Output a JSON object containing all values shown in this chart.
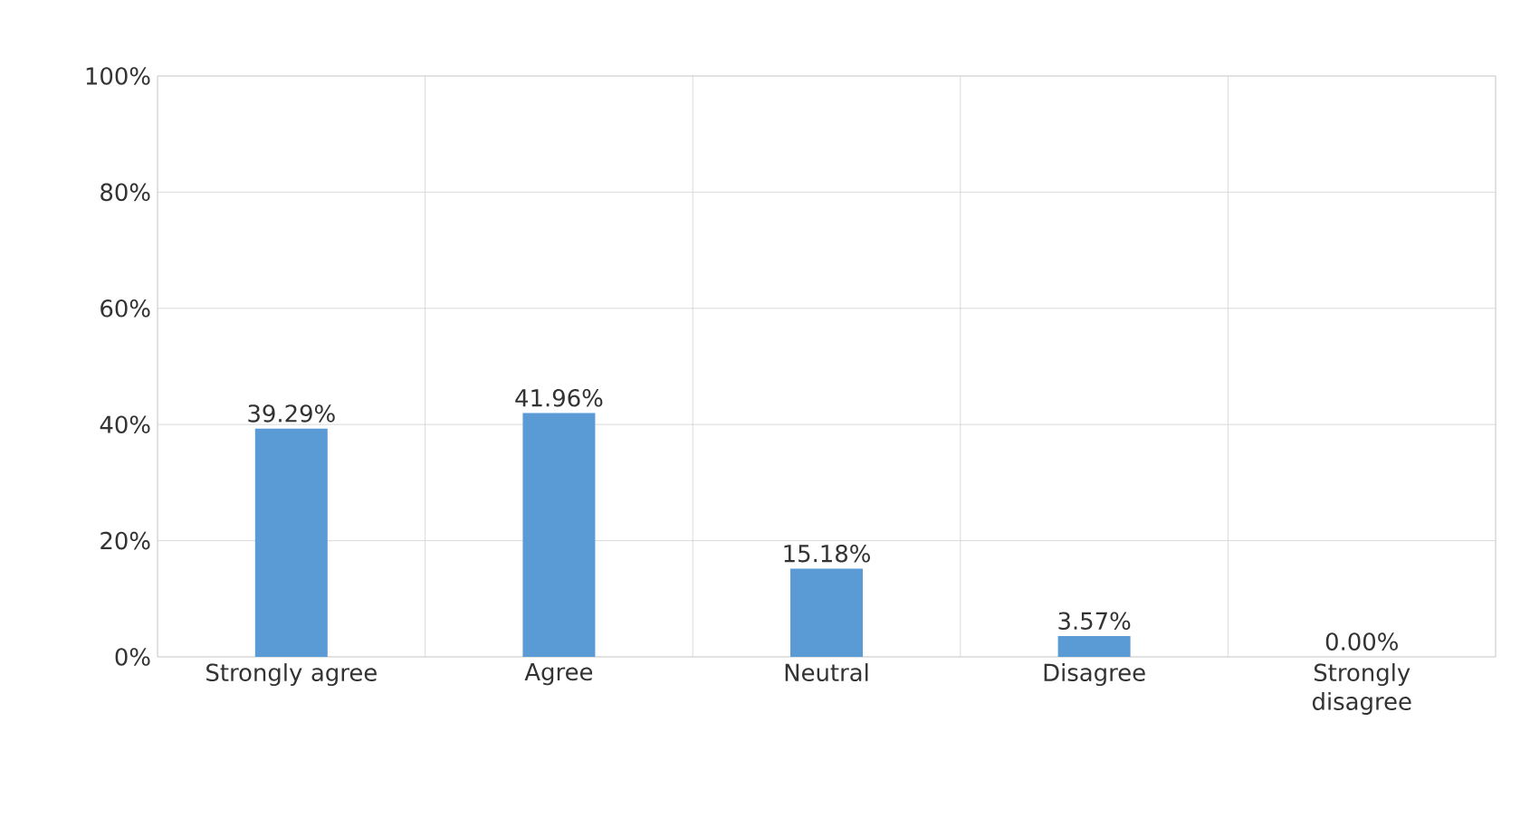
{
  "chart_data": {
    "type": "bar",
    "categories": [
      "Strongly agree",
      "Agree",
      "Neutral",
      "Disagree",
      "Strongly disagree"
    ],
    "values": [
      39.29,
      41.96,
      15.18,
      3.57,
      0.0
    ],
    "value_labels": [
      "39.29%",
      "41.96%",
      "15.18%",
      "3.57%",
      "0.00%"
    ],
    "color": "#5b9bd5",
    "ylim": [
      0,
      100
    ],
    "yticks": [
      {
        "value": 0,
        "label": "0%"
      },
      {
        "value": 20,
        "label": "20%"
      },
      {
        "value": 40,
        "label": "40%"
      },
      {
        "value": 60,
        "label": "60%"
      },
      {
        "value": 80,
        "label": "80%"
      },
      {
        "value": 100,
        "label": "100%"
      }
    ],
    "grid": true
  }
}
